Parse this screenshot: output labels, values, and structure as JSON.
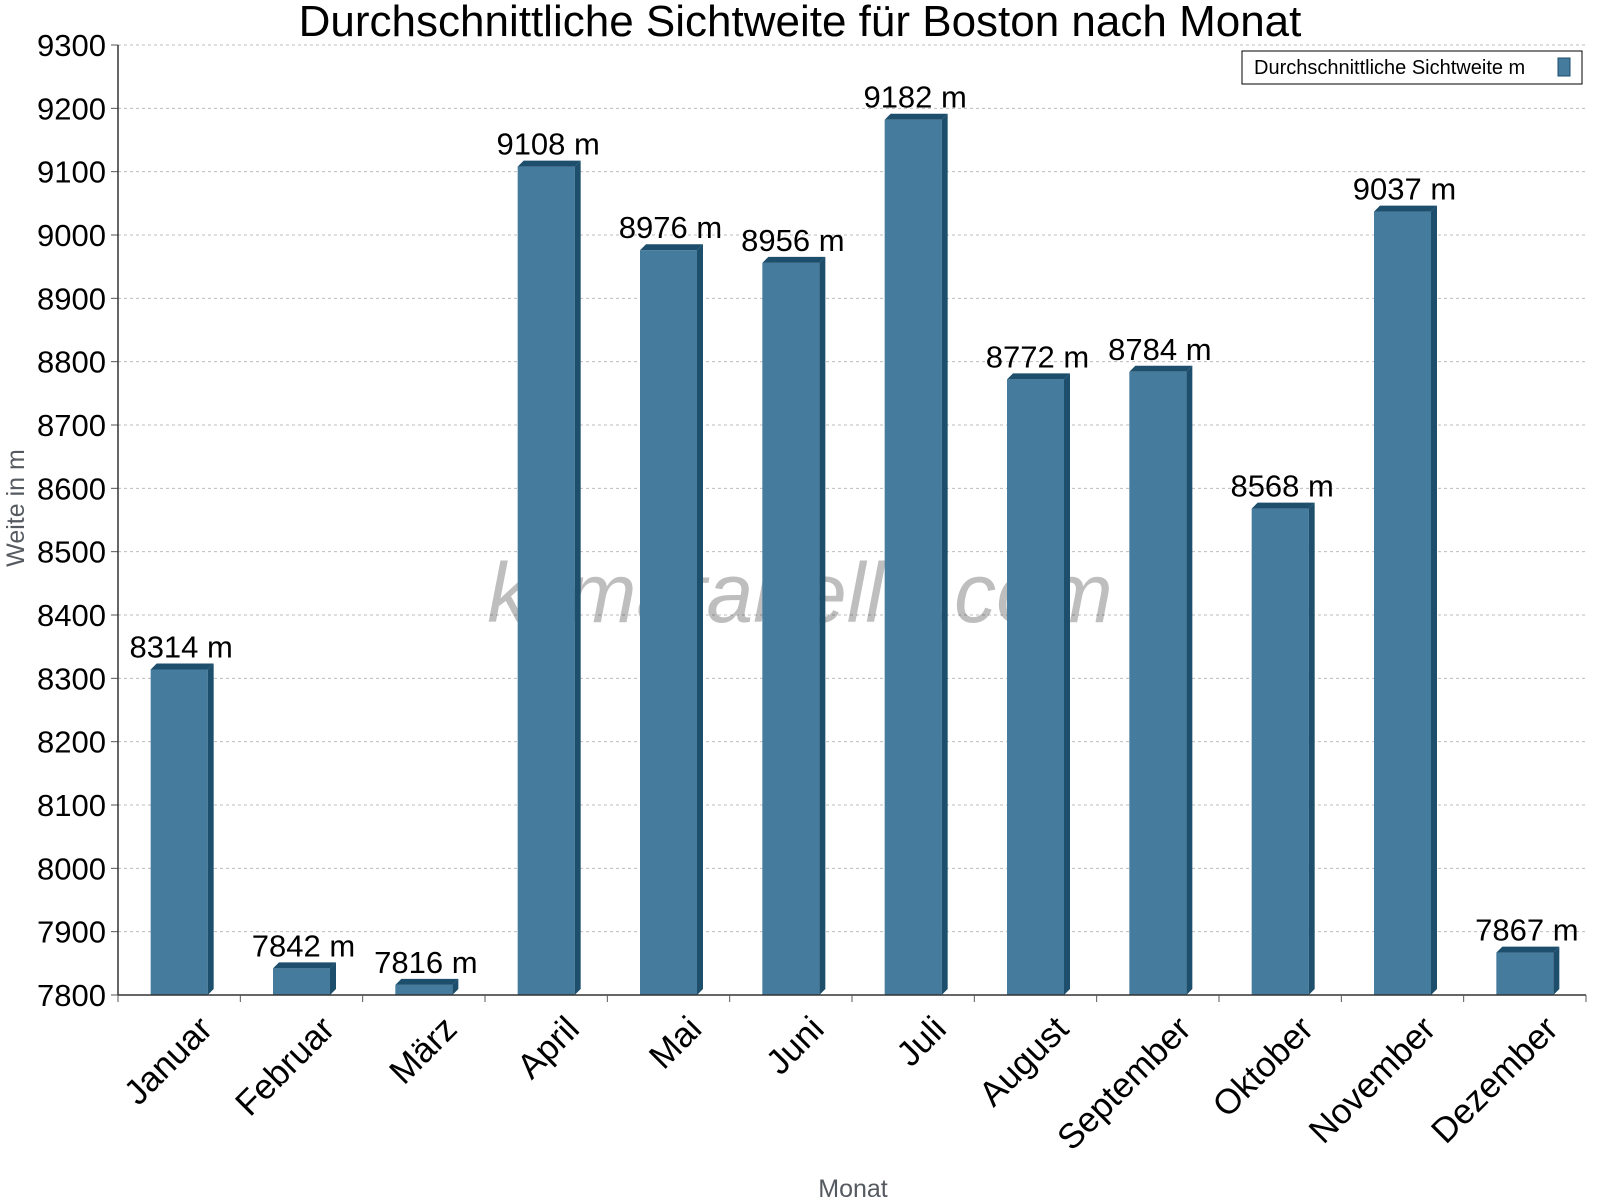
{
  "chart_data": {
    "type": "bar",
    "title": "Durchschnittliche Sichtweite für Boston nach Monat",
    "xlabel": "Monat",
    "ylabel": "Weite in m",
    "ylim": [
      7800,
      9300
    ],
    "yticks": [
      7800,
      7900,
      8000,
      8100,
      8200,
      8300,
      8400,
      8500,
      8600,
      8700,
      8800,
      8900,
      9000,
      9100,
      9200,
      9300
    ],
    "grid": true,
    "legend_position": "top-right",
    "categories": [
      "Januar",
      "Februar",
      "März",
      "April",
      "Mai",
      "Juni",
      "Juli",
      "August",
      "September",
      "Oktober",
      "November",
      "Dezember"
    ],
    "series": [
      {
        "name": "Durchschnittliche Sichtweite m",
        "values": [
          8314,
          7842,
          7816,
          9108,
          8976,
          8956,
          9182,
          8772,
          8784,
          8568,
          9037,
          7867
        ],
        "labels": [
          "8314 m",
          "7842 m",
          "7816 m",
          "9108 m",
          "8976 m",
          "8956 m",
          "9182 m",
          "8772 m",
          "8784 m",
          "8568 m",
          "9037 m",
          "7867 m"
        ],
        "color": "#457b9d",
        "shade_color": "#1d4e6b"
      }
    ]
  },
  "watermark": "klimatabelle.com"
}
